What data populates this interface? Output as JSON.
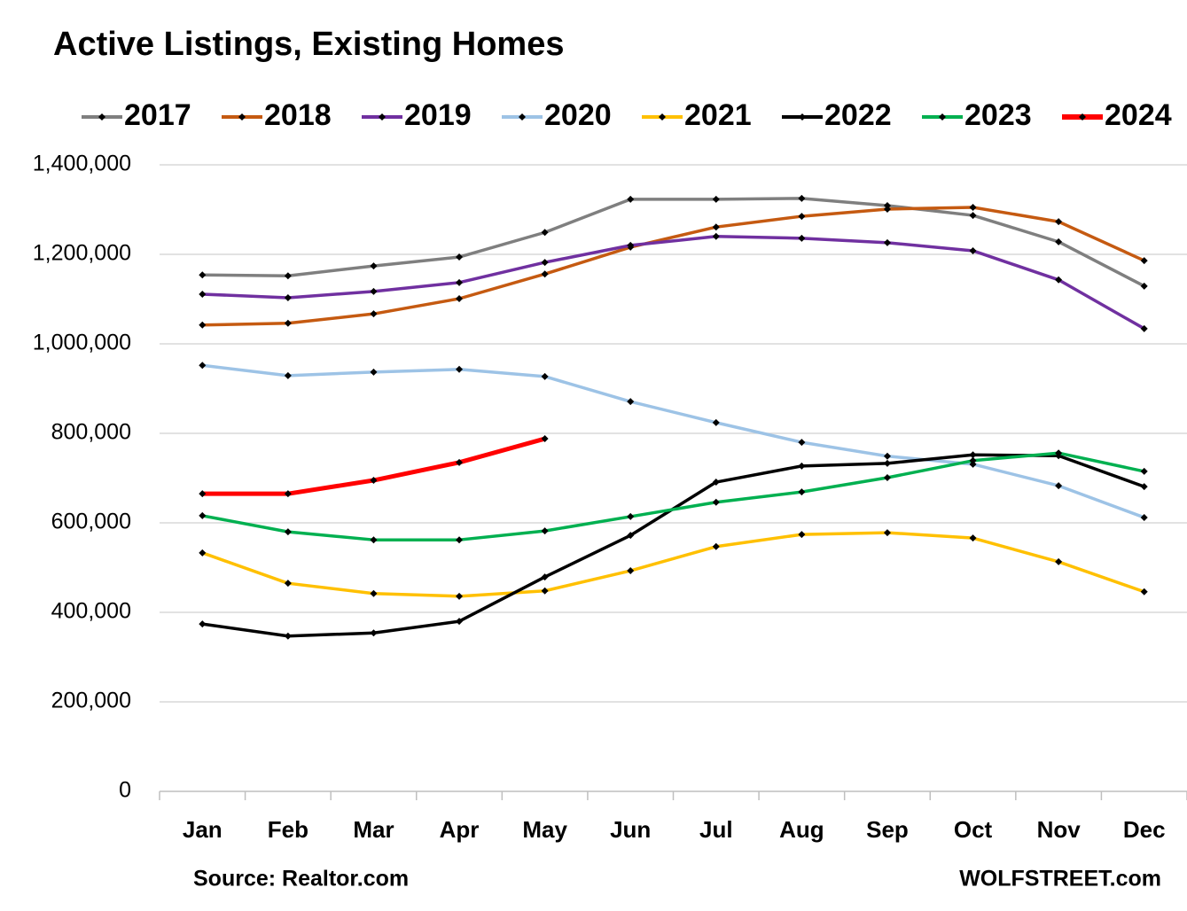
{
  "chart_data": {
    "type": "line",
    "title": "Active Listings, Existing Homes",
    "categories": [
      "Jan",
      "Feb",
      "Mar",
      "Apr",
      "May",
      "Jun",
      "Jul",
      "Aug",
      "Sep",
      "Oct",
      "Nov",
      "Dec"
    ],
    "series": [
      {
        "name": "2017",
        "color": "#7f7f7f",
        "values": [
          1154000,
          1152000,
          1174000,
          1194000,
          1249000,
          1323000,
          1323000,
          1325000,
          1309000,
          1287000,
          1228000,
          1129000
        ]
      },
      {
        "name": "2018",
        "color": "#c55a11",
        "values": [
          1042000,
          1046000,
          1067000,
          1101000,
          1156000,
          1216000,
          1261000,
          1285000,
          1301000,
          1305000,
          1273000,
          1186000
        ]
      },
      {
        "name": "2019",
        "color": "#7030a0",
        "values": [
          1111000,
          1103000,
          1117000,
          1137000,
          1182000,
          1220000,
          1240000,
          1236000,
          1226000,
          1208000,
          1143000,
          1034000
        ]
      },
      {
        "name": "2020",
        "color": "#9dc3e6",
        "values": [
          952000,
          929000,
          937000,
          943000,
          927000,
          871000,
          824000,
          780000,
          749000,
          731000,
          683000,
          612000
        ]
      },
      {
        "name": "2021",
        "color": "#ffc000",
        "values": [
          533000,
          465000,
          442000,
          436000,
          448000,
          493000,
          547000,
          574000,
          578000,
          566000,
          513000,
          446000
        ]
      },
      {
        "name": "2022",
        "color": "#000000",
        "values": [
          374000,
          347000,
          354000,
          380000,
          479000,
          572000,
          691000,
          727000,
          733000,
          752000,
          750000,
          681000
        ]
      },
      {
        "name": "2023",
        "color": "#00b050",
        "values": [
          616000,
          580000,
          562000,
          562000,
          582000,
          614000,
          646000,
          669000,
          701000,
          739000,
          756000,
          715000
        ]
      },
      {
        "name": "2024",
        "color": "#ff0000",
        "values": [
          665000,
          665000,
          695000,
          735000,
          788000,
          null,
          null,
          null,
          null,
          null,
          null,
          null
        ]
      }
    ],
    "ylim": [
      0,
      1400000
    ],
    "yticks": [
      0,
      {
        "value": 200000,
        "label": "200,000"
      },
      {
        "value": 400000,
        "label": "400,000"
      },
      {
        "value": 600000,
        "label": "600,000"
      },
      {
        "value": 800000,
        "label": "800,000"
      },
      {
        "value": 1000000,
        "label": "1,000,000"
      },
      {
        "value": 1200000,
        "label": "1,200,000"
      },
      {
        "value": 1400000,
        "label": "1,400,000"
      }
    ],
    "grid": true,
    "legend": "top",
    "source": "Source: Realtor.com",
    "credit": "WOLFSTREET.com"
  }
}
